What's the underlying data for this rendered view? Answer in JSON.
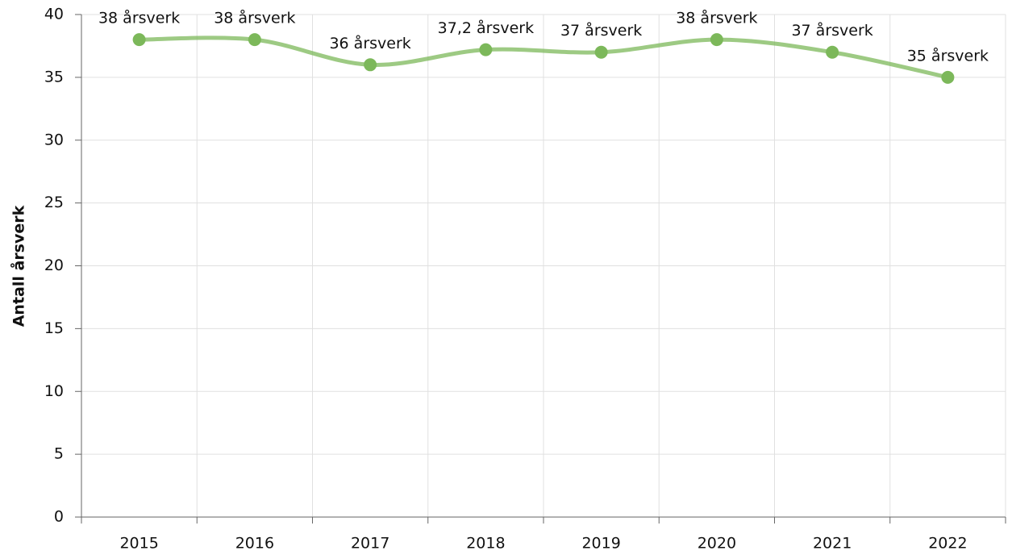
{
  "chart_data": {
    "type": "line",
    "y_label": "Antall årsverk",
    "categories": [
      "2015",
      "2016",
      "2017",
      "2018",
      "2019",
      "2020",
      "2021",
      "2022"
    ],
    "series": [
      {
        "name": "Antall årsverk",
        "color": "#7cb85a",
        "values": [
          38,
          38,
          36,
          37.2,
          37,
          38,
          37,
          35
        ],
        "value_labels": [
          "38 årsverk",
          "38 årsverk",
          "36 årsverk",
          "37,2 årsverk",
          "37 årsverk",
          "38 årsverk",
          "37 årsverk",
          "35 årsverk"
        ]
      }
    ],
    "ylim": [
      0,
      40
    ],
    "yticks": [
      0,
      5,
      10,
      15,
      20,
      25,
      30,
      35,
      40
    ],
    "grid": true,
    "smooth": true
  }
}
